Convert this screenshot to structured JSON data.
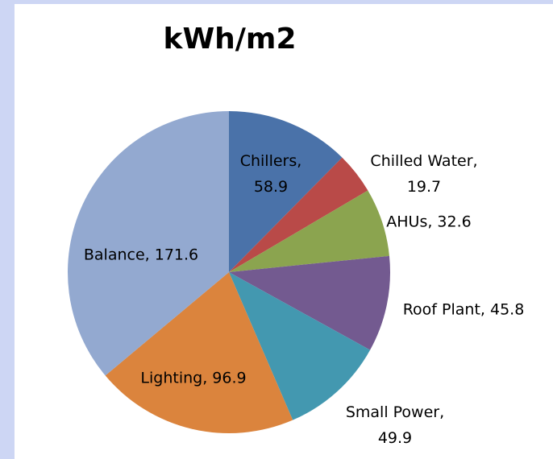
{
  "chart_data": {
    "type": "pie",
    "title": "kWh/m2",
    "values": [
      58.9,
      19.7,
      32.6,
      45.8,
      49.9,
      96.9,
      171.6
    ],
    "value_labels": [
      "Chillers, 58.9",
      "Chilled Water, 19.7",
      "AHUs, 32.6",
      "Roof Plant, 45.8",
      "Small Power, 49.9",
      "Lighting, 96.9",
      "Balance, 171.6"
    ],
    "colors": [
      "#4a72a9",
      "#b94a48",
      "#8ba44f",
      "#735a90",
      "#4398b0",
      "#db843d",
      "#93a9d0"
    ]
  }
}
